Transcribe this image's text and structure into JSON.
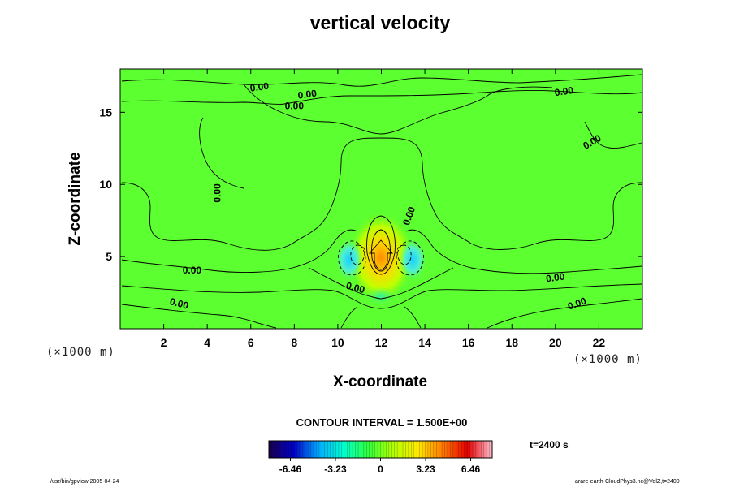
{
  "chart_data": {
    "type": "contour",
    "title": "vertical velocity",
    "xlabel": "X-coordinate",
    "ylabel": "Z-coordinate",
    "xunit": "(×1000 m)",
    "yunit": "(×1000 m)",
    "xlim": [
      0,
      24
    ],
    "ylim": [
      0,
      18
    ],
    "xticks": [
      2,
      4,
      6,
      8,
      10,
      12,
      14,
      16,
      18,
      20,
      22
    ],
    "yticks": [
      5,
      10,
      15
    ],
    "contour_interval_text": "CONTOUR INTERVAL = 1.500E+00",
    "contour_labels": [
      {
        "text": "0.00",
        "x": 6.4,
        "z": 16.7,
        "rot": -8
      },
      {
        "text": "0.00",
        "x": 8.6,
        "z": 16.2,
        "rot": -8
      },
      {
        "text": "0.00",
        "x": 8.0,
        "z": 15.4,
        "rot": 0
      },
      {
        "text": "0.00",
        "x": 20.4,
        "z": 16.4,
        "rot": -8
      },
      {
        "text": "0.00",
        "x": 21.7,
        "z": 12.9,
        "rot": -30
      },
      {
        "text": "0.00",
        "x": 4.5,
        "z": 9.4,
        "rot": -90
      },
      {
        "text": "0.00",
        "x": 13.3,
        "z": 7.8,
        "rot": -70
      },
      {
        "text": "0.00",
        "x": 3.3,
        "z": 4.0,
        "rot": 0
      },
      {
        "text": "0.00",
        "x": 10.8,
        "z": 2.8,
        "rot": 15
      },
      {
        "text": "0.00",
        "x": 20.0,
        "z": 3.5,
        "rot": -8
      },
      {
        "text": "0.00",
        "x": 2.7,
        "z": 1.7,
        "rot": 15
      },
      {
        "text": "0.00",
        "x": 21.0,
        "z": 1.7,
        "rot": -20
      }
    ],
    "features": [
      {
        "kind": "updraft_max",
        "x": 12.0,
        "z": 4.4,
        "value": 5.5
      },
      {
        "kind": "downdraft_min",
        "x": 10.7,
        "z": 4.7,
        "value": -2.5
      },
      {
        "kind": "downdraft_min",
        "x": 13.5,
        "z": 4.7,
        "value": -2.5
      }
    ],
    "colorbar": {
      "min": -8.0,
      "max": 8.0,
      "tick_values": [
        -6.46,
        -3.23,
        0,
        3.23,
        6.46
      ],
      "tick_labels": [
        "-6.46",
        "-3.23",
        "0",
        "3.23",
        "6.46"
      ],
      "colors": [
        "#1a004f",
        "#0000c8",
        "#00aaff",
        "#00ffd0",
        "#30ff40",
        "#b0ff00",
        "#ffea00",
        "#ff7a00",
        "#e60000",
        "#ffc0d0"
      ]
    },
    "time_label": "t=2400 s"
  },
  "footer": {
    "left": "/usr/bin/gpview 2005-04-24",
    "right": "arare-earth-CloudPhys3.nc@VelZ,t=2400"
  }
}
